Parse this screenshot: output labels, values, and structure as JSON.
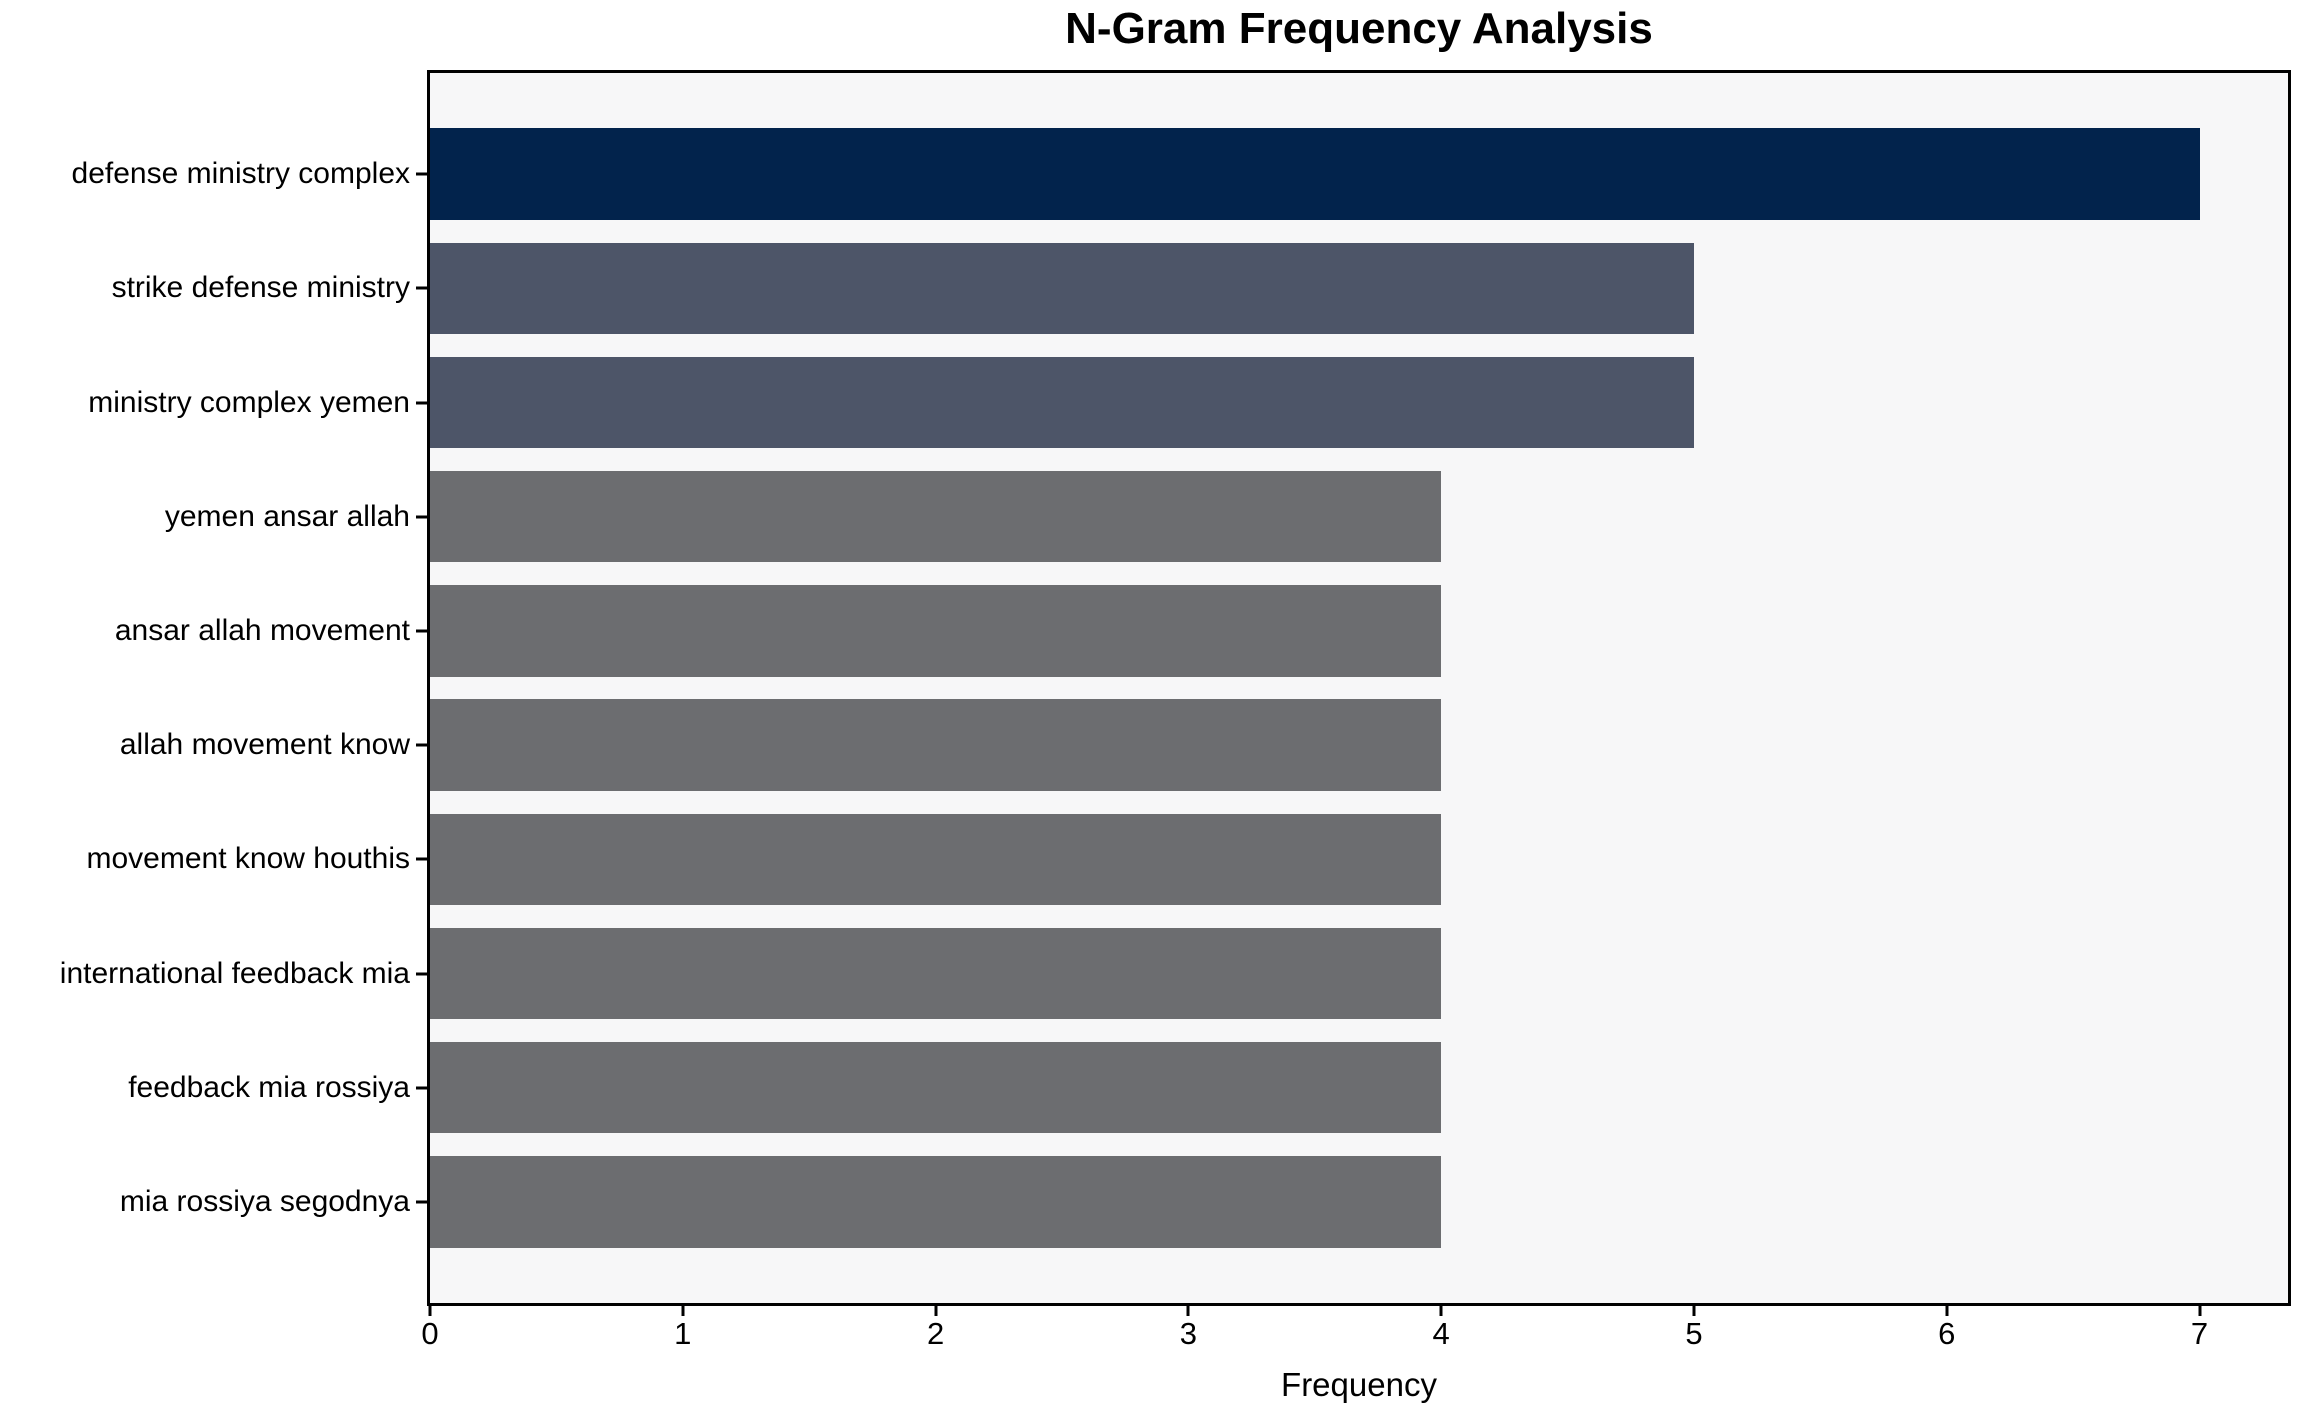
{
  "chart_data": {
    "type": "bar",
    "orientation": "horizontal",
    "title": "N-Gram Frequency Analysis",
    "xlabel": "Frequency",
    "ylabel": "",
    "categories": [
      "defense ministry complex",
      "strike defense ministry",
      "ministry complex yemen",
      "yemen ansar allah",
      "ansar allah movement",
      "allah movement know",
      "movement know houthis",
      "international feedback mia",
      "feedback mia rossiya",
      "mia rossiya segodnya"
    ],
    "values": [
      7,
      5,
      5,
      4,
      4,
      4,
      4,
      4,
      4,
      4
    ],
    "xticks": [
      0,
      1,
      2,
      3,
      4,
      5,
      6,
      7
    ],
    "xlim": [
      0,
      7.35
    ],
    "grid": false,
    "legend": false,
    "bar_colors": [
      "#02234C",
      "#4D5568",
      "#4D5568",
      "#6C6D70",
      "#6C6D70",
      "#6C6D70",
      "#6C6D70",
      "#6C6D70",
      "#6C6D70",
      "#6C6D70"
    ],
    "plot_background": "#F7F7F8",
    "figure_background": "#FFFFFF",
    "axis_color": "#000000"
  }
}
